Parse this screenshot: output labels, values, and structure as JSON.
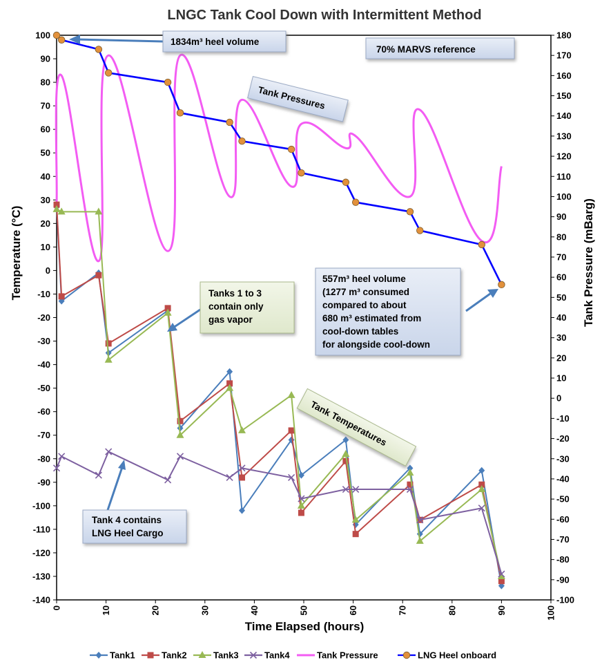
{
  "chart_data": {
    "type": "line",
    "title": "LNGC Tank Cool Down with Intermittent Method",
    "xlabel": "Time Elapsed (hours)",
    "ylabel": "Temperature (°C)",
    "y2label": "Tank Pressure (mBarg)",
    "xlim": [
      0,
      100
    ],
    "ylim": [
      -140,
      100
    ],
    "y2lim": [
      -100,
      180
    ],
    "x_ticks": [
      0,
      10,
      20,
      30,
      40,
      50,
      60,
      70,
      80,
      90,
      100
    ],
    "y_ticks": [
      100,
      90,
      80,
      70,
      60,
      50,
      40,
      30,
      20,
      10,
      0,
      -10,
      -20,
      -30,
      -40,
      -50,
      -60,
      -70,
      -80,
      -90,
      -100,
      -110,
      -120,
      -130,
      -140
    ],
    "y2_ticks": [
      180,
      170,
      160,
      150,
      140,
      130,
      120,
      110,
      100,
      90,
      80,
      70,
      60,
      50,
      40,
      30,
      20,
      10,
      0,
      -10,
      -20,
      -30,
      -40,
      -50,
      -60,
      -70,
      -80,
      -90,
      -100
    ],
    "legend_position": "bottom",
    "series": [
      {
        "name": "Tank1",
        "axis": "left",
        "color": "#4a7ebb",
        "marker": "diamond",
        "x": [
          0,
          1,
          8.5,
          10.5,
          22.5,
          25,
          35,
          37.5,
          47.5,
          49.5,
          58.5,
          60.5,
          71.5,
          73.5,
          86,
          90
        ],
        "y": [
          27,
          -13,
          -1,
          -35,
          -17,
          -67,
          -43,
          -102,
          -72,
          -87,
          -72,
          -108,
          -84,
          -112,
          -85,
          -134
        ]
      },
      {
        "name": "Tank2",
        "axis": "left",
        "color": "#be4b48",
        "marker": "square",
        "x": [
          0,
          1,
          8.5,
          10.5,
          22.5,
          25,
          35,
          37.5,
          47.5,
          49.5,
          58.5,
          60.5,
          71.5,
          73.5,
          86,
          90
        ],
        "y": [
          28,
          -11,
          -2,
          -31,
          -16,
          -64,
          -48,
          -88,
          -68,
          -103,
          -81,
          -112,
          -91,
          -106,
          -91,
          -132
        ]
      },
      {
        "name": "Tank3",
        "axis": "left",
        "color": "#98b954",
        "marker": "triangle",
        "x": [
          0,
          1,
          8.5,
          10.5,
          22.5,
          25,
          35,
          37.5,
          47.5,
          49.5,
          58.5,
          60.5,
          71.5,
          73.5,
          86,
          90
        ],
        "y": [
          26,
          25,
          25,
          -38,
          -18,
          -70,
          -50,
          -68,
          -53,
          -100,
          -78,
          -106,
          -86,
          -115,
          -93,
          -130
        ]
      },
      {
        "name": "Tank4",
        "axis": "left",
        "color": "#7d60a0",
        "marker": "x",
        "x": [
          0,
          1,
          8.5,
          10.5,
          22.5,
          25,
          35,
          37.5,
          47.5,
          49.5,
          58.5,
          60.5,
          71.5,
          73.5,
          86,
          90
        ],
        "y": [
          -84,
          -79,
          -87,
          -77,
          -89,
          -79,
          -88,
          -84,
          -88,
          -97,
          -93,
          -93,
          -93,
          -106,
          -101,
          -129
        ]
      },
      {
        "name": "Tank Pressure",
        "axis": "right",
        "color": "#f35cf3",
        "marker": "none",
        "x": [
          0,
          1,
          8.5,
          10.5,
          22.5,
          25,
          35,
          37.5,
          47.5,
          49.5,
          58.5,
          60.5,
          71.5,
          73.5,
          86,
          90
        ],
        "y": [
          97,
          160,
          68,
          170,
          73,
          170,
          100,
          148,
          105,
          136,
          124,
          130,
          100,
          143,
          78,
          115
        ]
      },
      {
        "name": "LNG Heel onboard",
        "axis": "left",
        "color": "#0000ff",
        "marker": "circle",
        "marker_color": "#e2913c",
        "x": [
          0,
          1,
          8.5,
          10.5,
          22.5,
          25,
          35,
          37.5,
          47.5,
          49.5,
          58.5,
          60.5,
          71.5,
          73.5,
          86,
          90
        ],
        "y": [
          100,
          98,
          94,
          84,
          80,
          67,
          63,
          55,
          51.5,
          41.5,
          37.5,
          29,
          25,
          17,
          11,
          -6
        ]
      }
    ],
    "annotations": [
      {
        "lines": [
          "1834m³ heel volume"
        ]
      },
      {
        "lines": [
          "70% MARVS reference"
        ]
      },
      {
        "lines": [
          "Tank Pressures"
        ]
      },
      {
        "lines": [
          "Tanks 1 to 3",
          "contain only",
          "gas vapor"
        ]
      },
      {
        "lines": [
          "Tank Temperatures"
        ]
      },
      {
        "lines": [
          "557m³ heel volume",
          "(1277 m³ consumed",
          "compared to about",
          "680 m³ estimated from",
          " cool-down tables",
          "for alongside cool-down"
        ]
      },
      {
        "lines": [
          "Tank 4 contains",
          "LNG Heel Cargo"
        ]
      }
    ]
  }
}
